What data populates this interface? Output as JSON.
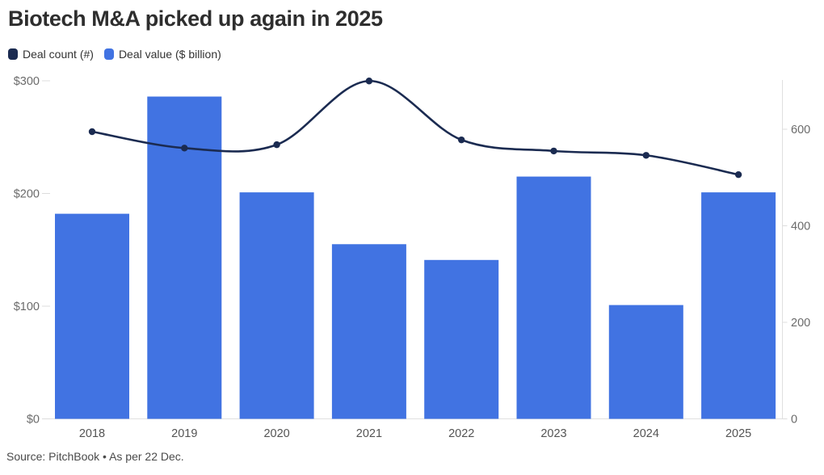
{
  "title": "Biotech M&A picked up again in 2025",
  "source": "Source: PitchBook • As per 22 Dec.",
  "chart_data": {
    "type": "combo",
    "categories": [
      "2018",
      "2019",
      "2020",
      "2021",
      "2022",
      "2023",
      "2024",
      "2025"
    ],
    "series": [
      {
        "name": "Deal count (#)",
        "type": "line",
        "axis": "right",
        "color": "#1b2b51",
        "values": [
          595,
          561,
          568,
          700,
          578,
          555,
          546,
          506
        ]
      },
      {
        "name": "Deal value ($ billion)",
        "type": "bar",
        "axis": "left",
        "color": "#4173e2",
        "values": [
          182,
          286,
          201,
          155,
          141,
          215,
          101,
          201
        ]
      }
    ],
    "left_axis": {
      "tick_values": [
        0,
        100,
        200,
        300
      ],
      "tick_labels": [
        "$0",
        "$100",
        "$200",
        "$300"
      ],
      "range": [
        0,
        300
      ]
    },
    "right_axis": {
      "tick_values": [
        0,
        200,
        400,
        600
      ],
      "tick_labels": [
        "0",
        "200",
        "400",
        "600"
      ],
      "range": [
        0,
        700
      ]
    },
    "grid": "none",
    "legend_position": "top-left"
  }
}
